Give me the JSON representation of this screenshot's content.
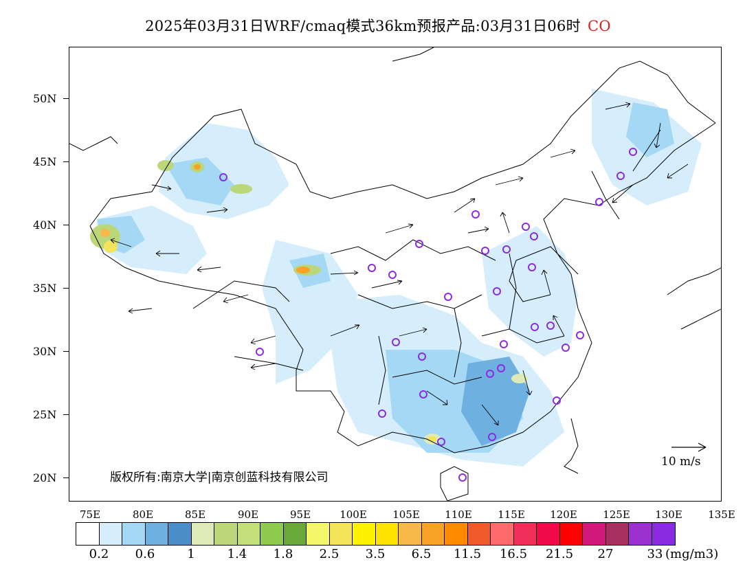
{
  "title": {
    "text": "2025年03月31日WRF/cmaq模式36km预报产品:03月31日06时",
    "species": "CO"
  },
  "map": {
    "lat_labels": [
      "50N",
      "45N",
      "40N",
      "35N",
      "30N",
      "25N",
      "20N"
    ],
    "lon_labels": [
      "75E",
      "80E",
      "85E",
      "90E",
      "95E",
      "100E",
      "105E",
      "110E",
      "115E",
      "120E",
      "125E",
      "130E",
      "135E"
    ],
    "copyright": "版权所有:南京大学|南京创蓝科技有限公司",
    "wind_scale_label": "10 m/s",
    "station_marker_color": "#8a2be2"
  },
  "colorbar": {
    "colors": [
      "#ffffff",
      "#d6eefb",
      "#a4d8f5",
      "#6eb1e0",
      "#4a8ec9",
      "#deebb8",
      "#bcd67a",
      "#c4e07a",
      "#8ecb4e",
      "#6aa83a",
      "#f5f76b",
      "#f3e45a",
      "#fff200",
      "#ffe400",
      "#f8b94a",
      "#f8a326",
      "#ff8a00",
      "#f05a2a",
      "#ff6a6a",
      "#f0305a",
      "#f00a4a",
      "#ff0000",
      "#d0187a",
      "#a83060",
      "#9a30d0",
      "#8a2be2"
    ],
    "labels": [
      "0.2",
      "0.6",
      "1",
      "1.4",
      "1.8",
      "2.5",
      "3.5",
      "6.5",
      "11.5",
      "16.5",
      "21.5",
      "27",
      "33"
    ],
    "unit": "(mg/m3)"
  }
}
